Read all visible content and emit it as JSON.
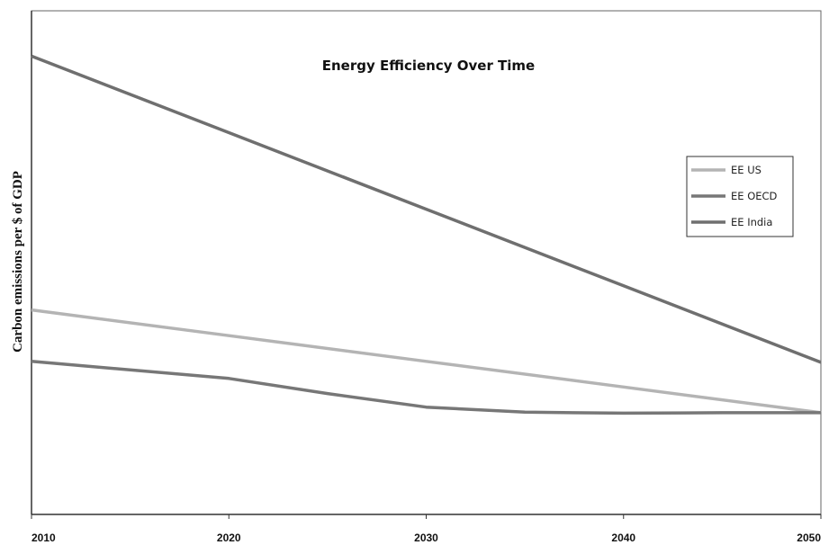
{
  "chart_data": {
    "type": "line",
    "title": "Energy Efficiency Over Time",
    "xlabel": "",
    "ylabel": "Carbon emissions per $ of GDP",
    "x_ticks": [
      2010,
      2020,
      2030,
      2040,
      2050
    ],
    "xlim": [
      2010,
      2050
    ],
    "ylim": [
      0,
      100
    ],
    "y_ticks_labeled": false,
    "grid": false,
    "legend_position": "right",
    "series": [
      {
        "name": "EE US",
        "color": "#b4b4b4",
        "x": [
          2010,
          2020,
          2030,
          2040,
          2050
        ],
        "y": [
          40.6,
          35.5,
          30.4,
          25.3,
          20.2
        ]
      },
      {
        "name": "EE OECD",
        "color": "#777777",
        "x": [
          2010,
          2020,
          2025,
          2030,
          2035,
          2040,
          2045,
          2050
        ],
        "y": [
          30.4,
          27.0,
          24.0,
          21.3,
          20.3,
          20.1,
          20.2,
          20.2
        ]
      },
      {
        "name": "EE India",
        "color": "#6f6f6f",
        "x": [
          2010,
          2020,
          2030,
          2040,
          2050
        ],
        "y": [
          91.0,
          75.8,
          60.6,
          45.4,
          30.2
        ]
      }
    ]
  }
}
